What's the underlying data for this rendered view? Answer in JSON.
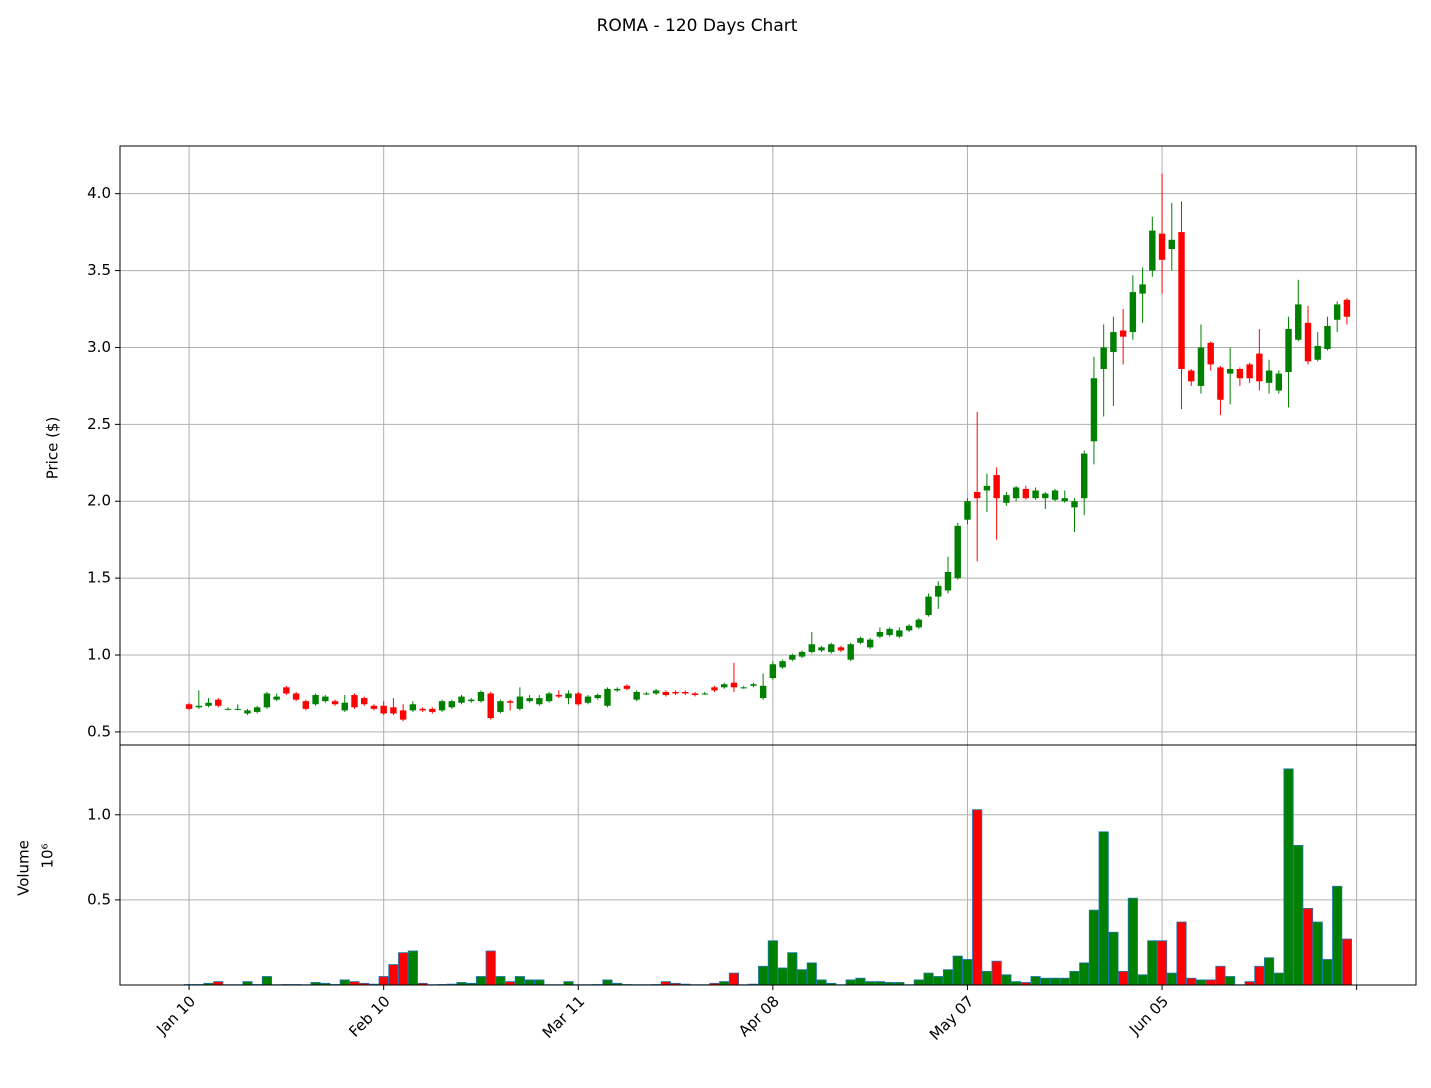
{
  "title": "ROMA - 120 Days Chart",
  "chart_data": [
    {
      "type": "candlestick",
      "ylabel": "Price ($)",
      "up_color": "#008000",
      "down_color": "#ff0000",
      "grid": true,
      "ylim": [
        0.415,
        4.31
      ],
      "yticks": [
        0.5,
        {
          "value": 1,
          "label": "1.0"
        },
        1.5,
        {
          "value": 2,
          "label": "2.0"
        },
        2.5,
        {
          "value": 3,
          "label": "3.0"
        },
        3.5,
        {
          "value": 4,
          "label": "4.0"
        }
      ],
      "open": [
        0.68,
        0.66,
        0.67,
        0.71,
        0.65,
        0.65,
        0.62,
        0.63,
        0.66,
        0.71,
        0.79,
        0.75,
        0.7,
        0.68,
        0.7,
        0.7,
        0.64,
        0.74,
        0.72,
        0.67,
        0.67,
        0.66,
        0.64,
        0.64,
        0.65,
        0.65,
        0.64,
        0.66,
        0.69,
        0.7,
        0.7,
        0.75,
        0.63,
        0.7,
        0.65,
        0.7,
        0.68,
        0.7,
        0.74,
        0.72,
        0.75,
        0.69,
        0.72,
        0.67,
        0.77,
        0.8,
        0.71,
        0.75,
        0.75,
        0.76,
        0.76,
        0.76,
        0.75,
        0.75,
        0.79,
        0.79,
        0.82,
        0.79,
        0.8,
        0.72,
        0.85,
        0.92,
        0.97,
        0.99,
        1.02,
        1.03,
        1.02,
        1.05,
        0.97,
        1.08,
        1.05,
        1.12,
        1.13,
        1.12,
        1.16,
        1.18,
        1.26,
        1.38,
        1.42,
        1.5,
        1.88,
        2.06,
        2.07,
        2.17,
        1.99,
        2.02,
        2.08,
        2.02,
        2.02,
        2.01,
        2.0,
        1.96,
        2.02,
        2.39,
        2.86,
        2.97,
        3.11,
        3.1,
        3.35,
        3.5,
        3.74,
        3.64,
        3.75,
        2.85,
        2.75,
        3.03,
        2.87,
        2.83,
        2.86,
        2.89,
        2.96,
        2.77,
        2.72,
        2.84,
        3.05,
        3.16,
        2.92,
        2.99,
        3.18,
        3.31
      ],
      "high": [
        0.69,
        0.77,
        0.72,
        0.72,
        0.66,
        0.68,
        0.65,
        0.67,
        0.76,
        0.75,
        0.8,
        0.76,
        0.71,
        0.75,
        0.74,
        0.71,
        0.74,
        0.75,
        0.73,
        0.68,
        0.7,
        0.72,
        0.68,
        0.7,
        0.66,
        0.66,
        0.71,
        0.71,
        0.74,
        0.72,
        0.77,
        0.76,
        0.71,
        0.71,
        0.79,
        0.74,
        0.74,
        0.76,
        0.77,
        0.77,
        0.76,
        0.74,
        0.75,
        0.79,
        0.79,
        0.81,
        0.77,
        0.76,
        0.78,
        0.77,
        0.77,
        0.77,
        0.76,
        0.76,
        0.8,
        0.82,
        0.95,
        0.8,
        0.82,
        0.88,
        0.96,
        0.97,
        1.01,
        1.03,
        1.15,
        1.06,
        1.08,
        1.06,
        1.08,
        1.12,
        1.11,
        1.18,
        1.18,
        1.18,
        1.2,
        1.24,
        1.4,
        1.48,
        1.64,
        1.86,
        2.02,
        2.58,
        2.18,
        2.22,
        2.06,
        2.1,
        2.1,
        2.09,
        2.06,
        2.08,
        2.07,
        2.02,
        2.33,
        2.94,
        3.15,
        3.2,
        3.25,
        3.47,
        3.52,
        3.85,
        4.13,
        3.94,
        3.95,
        2.86,
        3.15,
        3.04,
        2.88,
        3.0,
        2.87,
        2.9,
        3.12,
        2.92,
        2.85,
        3.2,
        3.44,
        3.27,
        3.1,
        3.2,
        3.3,
        3.32
      ],
      "low": [
        0.64,
        0.65,
        0.66,
        0.66,
        0.64,
        0.64,
        0.61,
        0.62,
        0.65,
        0.7,
        0.74,
        0.7,
        0.64,
        0.67,
        0.69,
        0.67,
        0.63,
        0.65,
        0.67,
        0.64,
        0.61,
        0.61,
        0.57,
        0.63,
        0.63,
        0.62,
        0.63,
        0.65,
        0.68,
        0.69,
        0.69,
        0.58,
        0.62,
        0.64,
        0.64,
        0.69,
        0.67,
        0.69,
        0.72,
        0.68,
        0.67,
        0.68,
        0.71,
        0.66,
        0.76,
        0.77,
        0.7,
        0.74,
        0.74,
        0.73,
        0.74,
        0.74,
        0.73,
        0.74,
        0.76,
        0.78,
        0.76,
        0.78,
        0.79,
        0.71,
        0.84,
        0.91,
        0.96,
        0.98,
        1.01,
        1.02,
        1.01,
        1.02,
        0.96,
        1.07,
        1.04,
        1.11,
        1.12,
        1.11,
        1.15,
        1.17,
        1.25,
        1.3,
        1.4,
        1.49,
        1.85,
        1.61,
        1.93,
        1.75,
        1.97,
        2.0,
        2.01,
        2.01,
        1.95,
        2.0,
        1.99,
        1.8,
        1.91,
        2.24,
        2.55,
        2.62,
        2.89,
        3.05,
        3.16,
        3.46,
        3.35,
        3.5,
        2.6,
        2.75,
        2.7,
        2.85,
        2.56,
        2.63,
        2.75,
        2.77,
        2.72,
        2.7,
        2.7,
        2.61,
        3.04,
        2.89,
        2.91,
        2.98,
        3.1,
        3.15
      ],
      "close": [
        0.65,
        0.67,
        0.69,
        0.67,
        0.65,
        0.65,
        0.64,
        0.66,
        0.75,
        0.73,
        0.75,
        0.71,
        0.65,
        0.74,
        0.73,
        0.68,
        0.69,
        0.66,
        0.68,
        0.65,
        0.62,
        0.62,
        0.58,
        0.68,
        0.64,
        0.63,
        0.7,
        0.7,
        0.73,
        0.71,
        0.76,
        0.59,
        0.7,
        0.69,
        0.73,
        0.72,
        0.72,
        0.75,
        0.73,
        0.75,
        0.68,
        0.73,
        0.74,
        0.78,
        0.78,
        0.78,
        0.76,
        0.75,
        0.77,
        0.74,
        0.75,
        0.75,
        0.74,
        0.75,
        0.77,
        0.81,
        0.79,
        0.79,
        0.81,
        0.8,
        0.94,
        0.96,
        1.0,
        1.02,
        1.07,
        1.05,
        1.07,
        1.03,
        1.07,
        1.11,
        1.1,
        1.15,
        1.17,
        1.16,
        1.19,
        1.23,
        1.38,
        1.45,
        1.54,
        1.84,
        2.0,
        2.02,
        2.1,
        2.02,
        2.04,
        2.09,
        2.02,
        2.07,
        2.05,
        2.07,
        2.02,
        2.0,
        2.31,
        2.8,
        3.0,
        3.1,
        3.07,
        3.36,
        3.41,
        3.76,
        3.57,
        3.7,
        2.86,
        2.78,
        3.0,
        2.89,
        2.66,
        2.86,
        2.8,
        2.8,
        2.78,
        2.85,
        2.83,
        3.12,
        3.28,
        2.91,
        3.01,
        3.14,
        3.28,
        3.2
      ]
    },
    {
      "type": "bar",
      "ylabel": "Volume",
      "scale_label": "10⁶",
      "edge_color": "#1f77b4",
      "grid": true,
      "ylim": [
        0,
        1.41
      ],
      "yticks": [
        0.5,
        {
          "value": 1,
          "label": "1.0"
        }
      ],
      "xlim": [
        -7.1,
        126.1
      ],
      "xticks": [
        {
          "value": 0,
          "label": "Jan 10"
        },
        {
          "value": 20,
          "label": "Feb 10"
        },
        {
          "value": 40,
          "label": "Mar 11"
        },
        {
          "value": 60,
          "label": "Apr 08"
        },
        {
          "value": 80,
          "label": "May 07"
        },
        {
          "value": 100,
          "label": "Jun 05"
        },
        {
          "value": 120,
          "label": null
        }
      ],
      "values": [
        0.003,
        0.003,
        0.01,
        0.02,
        0.002,
        0.002,
        0.02,
        0.003,
        0.05,
        0.002,
        0.003,
        0.003,
        0.002,
        0.015,
        0.01,
        0.003,
        0.03,
        0.02,
        0.01,
        0.005,
        0.05,
        0.12,
        0.19,
        0.2,
        0.01,
        0.002,
        0.003,
        0.005,
        0.015,
        0.01,
        0.05,
        0.2,
        0.05,
        0.02,
        0.05,
        0.03,
        0.03,
        0.002,
        0.002,
        0.02,
        0.002,
        0.002,
        0.003,
        0.03,
        0.01,
        0.003,
        0.002,
        0.002,
        0.003,
        0.02,
        0.01,
        0.005,
        0.002,
        0.002,
        0.01,
        0.02,
        0.07,
        0.002,
        0.005,
        0.11,
        0.26,
        0.1,
        0.19,
        0.09,
        0.13,
        0.03,
        0.01,
        0.002,
        0.03,
        0.04,
        0.02,
        0.02,
        0.015,
        0.015,
        0.002,
        0.03,
        0.07,
        0.05,
        0.09,
        0.17,
        0.15,
        1.03,
        0.08,
        0.14,
        0.06,
        0.02,
        0.015,
        0.05,
        0.04,
        0.04,
        0.04,
        0.08,
        0.13,
        0.44,
        0.9,
        0.31,
        0.08,
        0.51,
        0.06,
        0.26,
        0.26,
        0.07,
        0.37,
        0.04,
        0.03,
        0.03,
        0.11,
        0.05,
        0.002,
        0.02,
        0.11,
        0.16,
        0.07,
        1.27,
        0.82,
        0.45,
        0.37,
        0.15,
        0.58,
        0.27
      ]
    }
  ]
}
